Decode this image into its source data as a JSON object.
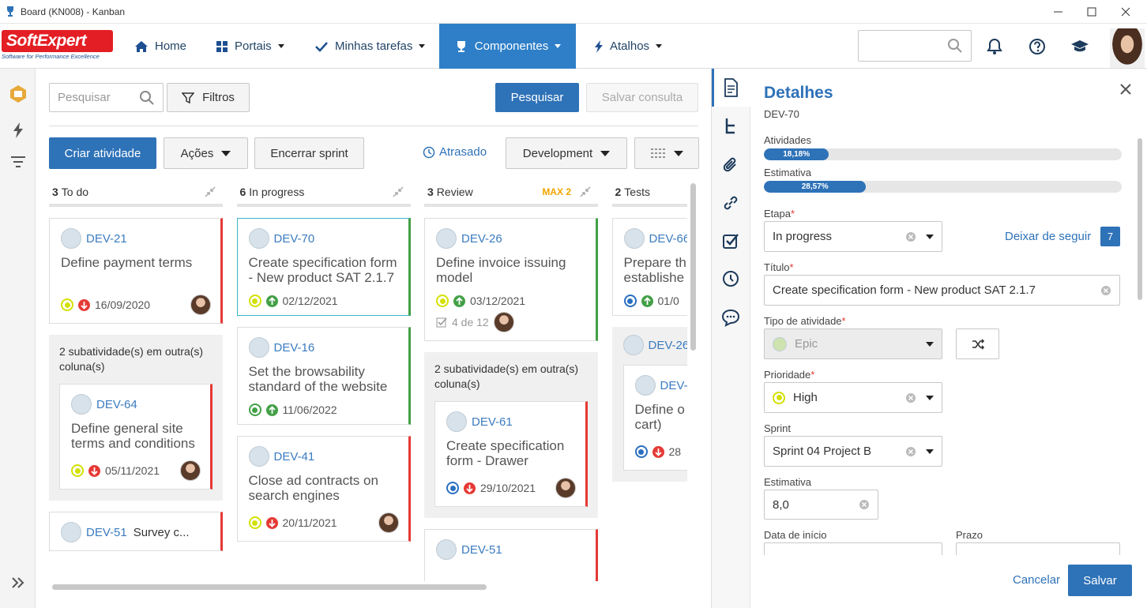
{
  "window": {
    "title": "Board (KN008) - Kanban"
  },
  "logo": {
    "name": "SoftExpert",
    "tagline": "Software for Performance Excellence"
  },
  "nav": [
    "Home",
    "Portais",
    "Minhas tarefas",
    "Componentes",
    "Atalhos"
  ],
  "toolbar": {
    "search_placeholder": "Pesquisar",
    "filters": "Filtros",
    "search": "Pesquisar",
    "save_query": "Salvar consulta",
    "create": "Criar atividade",
    "actions": "Ações",
    "close_sprint": "Encerrar sprint",
    "late": "Atrasado",
    "view": "Development"
  },
  "columns": [
    {
      "count": "3",
      "name": "To do",
      "cards": [
        {
          "id": "DEV-21",
          "title": "Define payment terms",
          "status": "#d4e000",
          "priority": "down",
          "date": "16/09/2020",
          "avatar": true,
          "border": "#e53935"
        },
        {
          "note": "2 subatividade(s) em outra(s) coluna(s)",
          "cards": [
            {
              "id": "DEV-64",
              "title": "Define general site terms and conditions",
              "status": "#d4e000",
              "priority": "down",
              "date": "05/11/2021",
              "avatar": true,
              "border": "#e53935"
            }
          ]
        },
        {
          "id": "DEV-51",
          "title": "Survey c...",
          "inline": true,
          "border": "#e53935"
        }
      ]
    },
    {
      "count": "6",
      "name": "In progress",
      "cards": [
        {
          "id": "DEV-70",
          "title": "Create specification form - New product SAT 2.1.7",
          "status": "#d4e000",
          "priority": "up",
          "date": "02/12/2021",
          "border": "#43a047",
          "selected": true
        },
        {
          "id": "DEV-16",
          "title": "Set the browsability standard of the website",
          "status": "#43a047",
          "priority": "up",
          "date": "11/06/2022",
          "border": "#43a047"
        },
        {
          "id": "DEV-41",
          "title": "Close ad contracts on search engines",
          "status": "#d4e000",
          "priority": "down",
          "date": "20/11/2021",
          "avatar": true,
          "border": "#e53935"
        }
      ]
    },
    {
      "count": "3",
      "name": "Review",
      "limit": "MAX 2",
      "cards": [
        {
          "id": "DEV-26",
          "title": "Define invoice issuing model",
          "status": "#d4e000",
          "priority": "up",
          "date": "03/12/2021",
          "checklist": "4 de 12",
          "avatar": true,
          "border": "#43a047"
        },
        {
          "note": "2 subatividade(s) em outra(s) coluna(s)",
          "cards": [
            {
              "id": "DEV-61",
              "title": "Create specification form - Drawer",
              "status": "#2a6fc0",
              "priority": "down",
              "date": "29/10/2021",
              "avatar": true,
              "border": "#e53935"
            }
          ]
        },
        {
          "id": "DEV-51",
          "border": "#e53935"
        }
      ]
    },
    {
      "count": "2",
      "name": "Tests",
      "cards": [
        {
          "id": "DEV-66",
          "title": "Prepare th issue invoi establishe",
          "status": "#2a6fc0",
          "priority": "up",
          "date": "01/0",
          "border": "#e53935"
        },
        {
          "id": "DEV-26",
          "cards": [
            {
              "id": "DEV-",
              "title": "Define o template cart)",
              "status": "#2a6fc0",
              "priority": "down",
              "date": "28",
              "avatar": true,
              "border": "#e53935"
            }
          ]
        }
      ]
    }
  ],
  "details": {
    "title": "Detalhes",
    "id": "DEV-70",
    "progress": [
      {
        "label": "Atividades",
        "value": 18.18,
        "value_label": "18,18%"
      },
      {
        "label": "Estimativa",
        "value": 28.57,
        "value_label": "28,57%"
      }
    ],
    "required_mark": "*",
    "stage_label": "Etapa",
    "stage": "In progress",
    "follow": "Deixar de seguir",
    "followers": "7",
    "title_label": "Título",
    "title_value": "Create specification form - New product SAT 2.1.7",
    "type_label": "Tipo de atividade",
    "type": "Epic",
    "priority_label": "Prioridade",
    "priority": "High",
    "sprint_label": "Sprint",
    "sprint": "Sprint 04 Project B",
    "estimate_label": "Estimativa",
    "estimate": "8,0",
    "start_label": "Data de início",
    "due_label": "Prazo",
    "cancel": "Cancelar",
    "save": "Salvar"
  }
}
